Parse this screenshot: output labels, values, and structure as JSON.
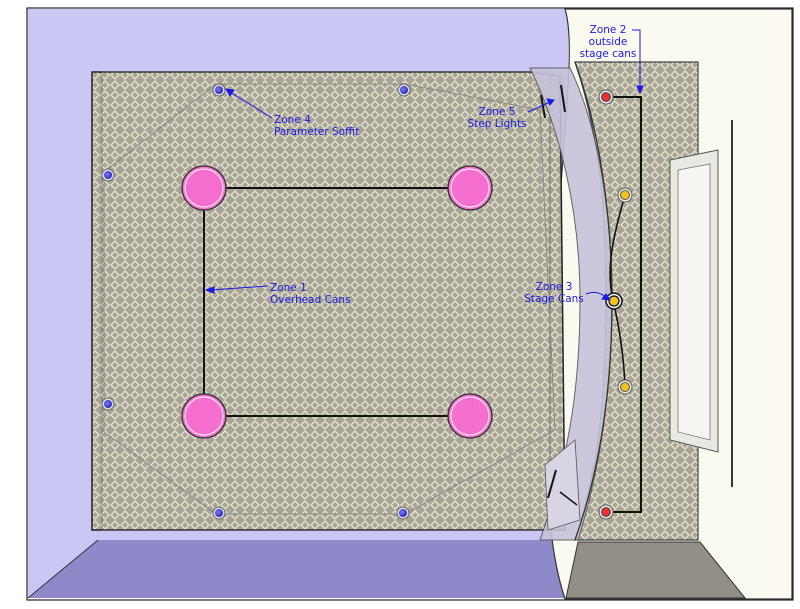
{
  "colors": {
    "background": "#ffffff",
    "left_wall": "#cbc7f4",
    "floor": "#8f89c9",
    "right_wall": "#fbfaf1",
    "carpet": "#a9a596",
    "carpet_pattern": "#e7e4cf",
    "overhead_cans": "#f46fce",
    "soffit_lights": "#3232c8",
    "stage_cans": "#f0c21e",
    "outside_stage_cans": "#e53434",
    "wiring": "#111111",
    "annotation_text": "#1a1ae6"
  },
  "labels": {
    "zone1": {
      "line1": "Zone 1",
      "line2": "Overhead Cans"
    },
    "zone2": {
      "line1": "Zone 2",
      "line2": "outside",
      "line3": "stage cans"
    },
    "zone3": {
      "line1": "Zone 3",
      "line2": "Stage Cans"
    },
    "zone4": {
      "line1": "Zone 4",
      "line2": "Parameter Soffit"
    },
    "zone5": {
      "line1": "Zone 5",
      "line2": "Step Lights"
    }
  },
  "icons": {
    "overhead_can": "large-pink-can-light",
    "soffit_light": "small-blue-soffit-light",
    "stage_can": "small-yellow-can-light",
    "outside_stage_can": "small-red-can-light",
    "step_light": "step-light-bar"
  }
}
